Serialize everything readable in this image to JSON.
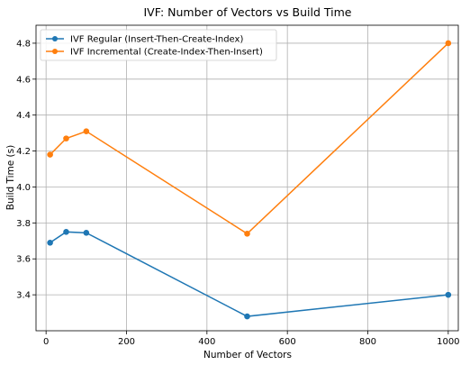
{
  "chart_data": {
    "type": "line",
    "title": "IVF: Number of Vectors vs Build Time",
    "xlabel": "Number of Vectors",
    "ylabel": "Build Time (s)",
    "xlim": [
      -25,
      1025
    ],
    "ylim": [
      3.2,
      4.9
    ],
    "xticks": [
      0,
      200,
      400,
      600,
      800,
      1000
    ],
    "yticks": [
      3.4,
      3.6,
      3.8,
      4.0,
      4.2,
      4.4,
      4.6,
      4.8
    ],
    "xtick_labels": [
      "0",
      "200",
      "400",
      "600",
      "800",
      "1000"
    ],
    "ytick_labels": [
      "3.4",
      "3.6",
      "3.8",
      "4.0",
      "4.2",
      "4.4",
      "4.6",
      "4.8"
    ],
    "grid": true,
    "legend_position": "top-left",
    "series": [
      {
        "name": "IVF Regular (Insert-Then-Create-Index)",
        "color": "#1f77b4",
        "x": [
          10,
          50,
          100,
          500,
          1000
        ],
        "y": [
          3.69,
          3.75,
          3.745,
          3.28,
          3.4
        ]
      },
      {
        "name": "IVF Incremental (Create-Index-Then-Insert)",
        "color": "#ff7f0e",
        "x": [
          10,
          50,
          100,
          500,
          1000
        ],
        "y": [
          4.18,
          4.27,
          4.31,
          3.74,
          4.8
        ]
      }
    ]
  }
}
